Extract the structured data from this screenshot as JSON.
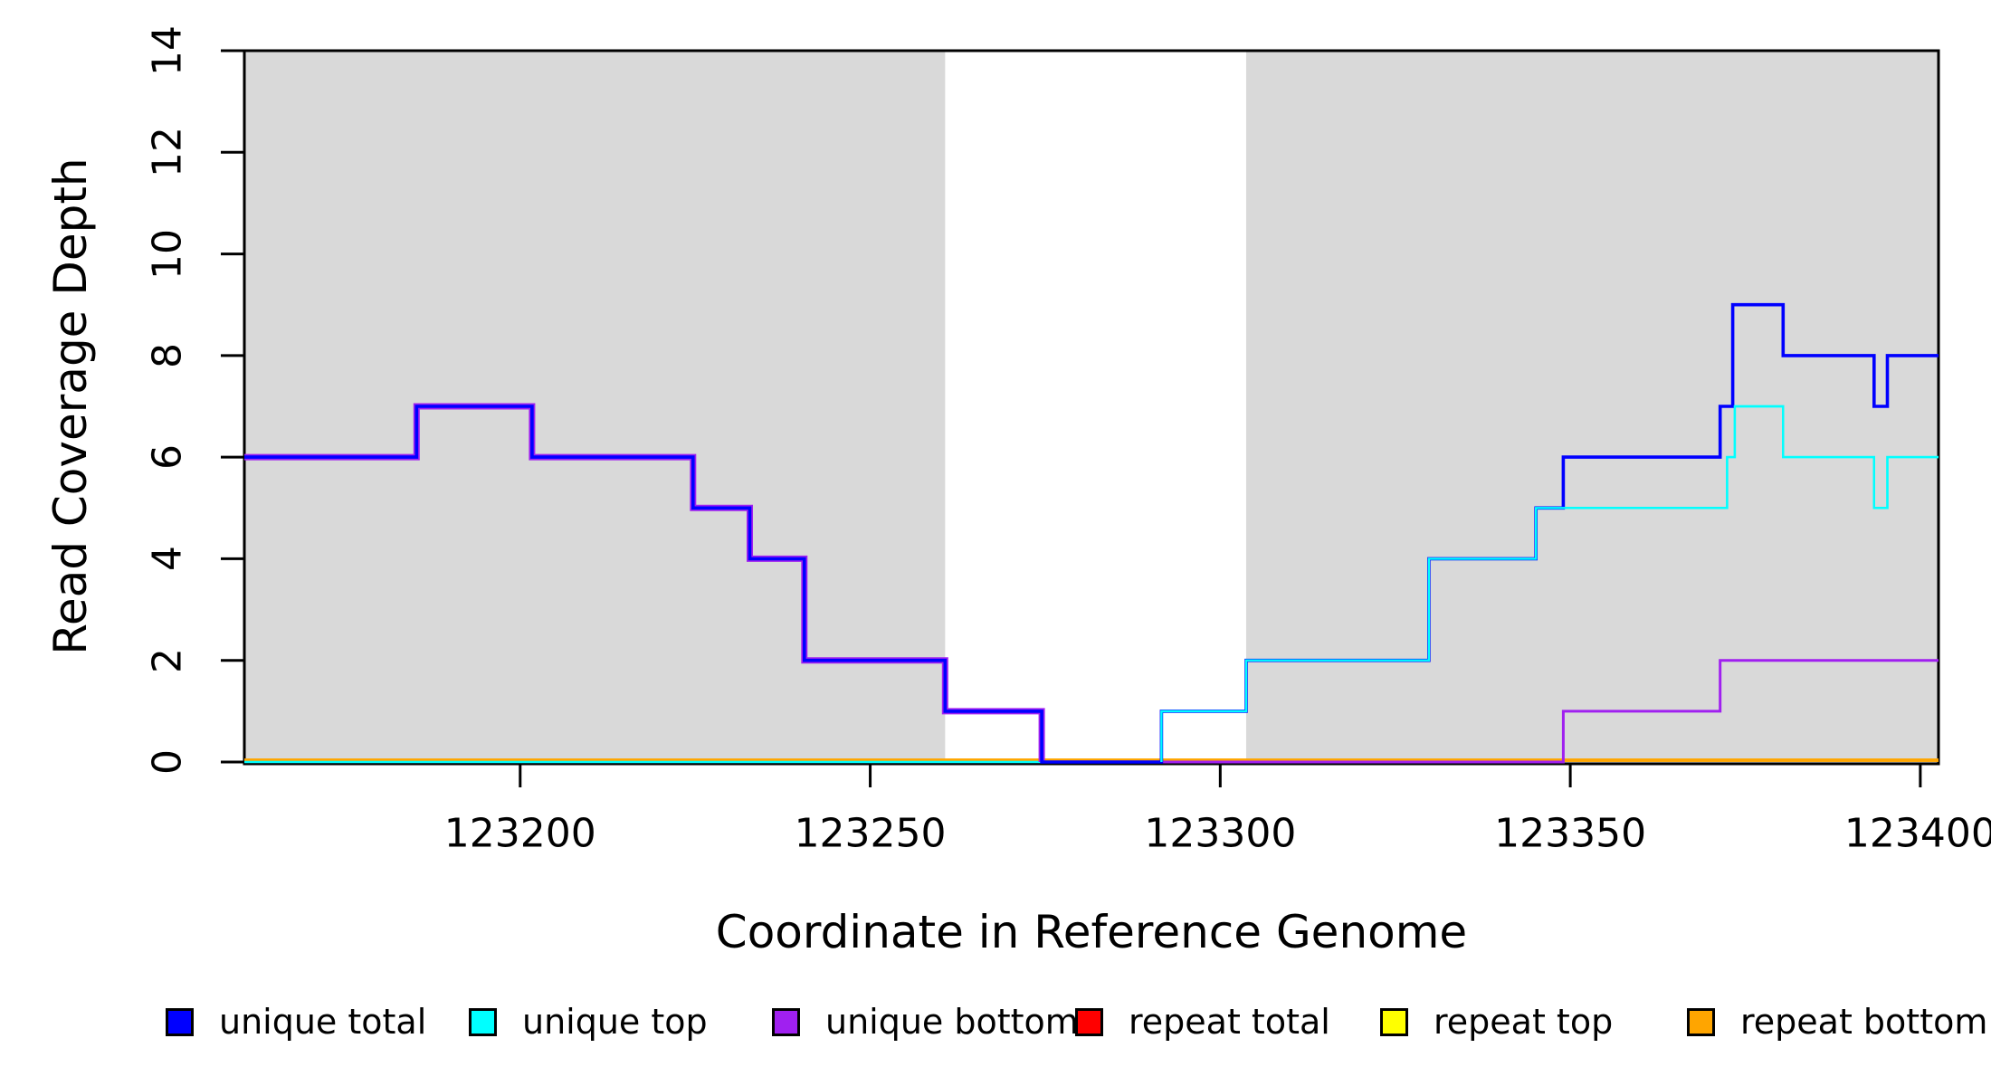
{
  "figure": {
    "background": "#ffffff",
    "plot_background_shading": "#d9d9d9"
  },
  "axes": {
    "x": {
      "title": "Coordinate in Reference Genome",
      "ticks": [
        123200,
        123250,
        123300,
        123350,
        123400
      ],
      "tick_labels": [
        "123200",
        "123250",
        "123300",
        "123350",
        "123400"
      ]
    },
    "y": {
      "title": "Read Coverage Depth",
      "ticks": [
        0,
        2,
        4,
        6,
        8,
        10,
        12,
        14
      ],
      "tick_labels": [
        "0",
        "2",
        "4",
        "6",
        "8",
        "10",
        "12",
        "14"
      ]
    }
  },
  "legend": {
    "items": [
      {
        "label": "unique total",
        "color": "#0000ff"
      },
      {
        "label": "unique top",
        "color": "#00ffff"
      },
      {
        "label": "unique bottom",
        "color": "#a020f0"
      },
      {
        "label": "repeat total",
        "color": "#ff0000"
      },
      {
        "label": "repeat top",
        "color": "#ffff00"
      },
      {
        "label": "repeat bottom",
        "color": "#ffa500"
      }
    ]
  },
  "chart_data": {
    "type": "line",
    "subtype": "step",
    "title": "",
    "xlabel": "Coordinate in Reference Genome",
    "ylabel": "Read Coverage Depth",
    "xlim": [
      123160.6,
      123402.6
    ],
    "ylim": [
      0,
      14
    ],
    "x_ticks": [
      123200,
      123250,
      123300,
      123350,
      123400
    ],
    "y_ticks": [
      0,
      2,
      4,
      6,
      8,
      10,
      12,
      14
    ],
    "grid": false,
    "legend_position": "bottom",
    "x_end": 123402.6,
    "shaded_regions": [
      {
        "x0": 123160.6,
        "x1": 123260.7,
        "color": "#d9d9d9"
      },
      {
        "x0": 123303.7,
        "x1": 123402.6,
        "color": "#d9d9d9"
      }
    ],
    "render_hints": {
      "coincident_bottom_total_until": 123274.5,
      "coincident_top_total_from": 123291.6
    },
    "series": [
      {
        "name": "repeat total",
        "color": "#ff0000",
        "steps": [
          [
            123160.6,
            0
          ]
        ]
      },
      {
        "name": "repeat top",
        "color": "#ffff00",
        "steps": [
          [
            123160.6,
            0
          ]
        ]
      },
      {
        "name": "repeat bottom",
        "color": "#ffa500",
        "steps": [
          [
            123160.6,
            0
          ]
        ]
      },
      {
        "name": "unique top",
        "color": "#00ffff",
        "steps": [
          [
            123160.6,
            0
          ],
          [
            123291.6,
            1
          ],
          [
            123303.7,
            2
          ],
          [
            123329.8,
            4
          ],
          [
            123345.1,
            5
          ],
          [
            123372.4,
            6
          ],
          [
            123373.5,
            7
          ],
          [
            123380.4,
            6
          ],
          [
            123393.4,
            5
          ],
          [
            123395.3,
            6
          ]
        ]
      },
      {
        "name": "unique bottom",
        "color": "#a020f0",
        "steps": [
          [
            123160.6,
            6
          ],
          [
            123185.2,
            7
          ],
          [
            123201.7,
            6
          ],
          [
            123224.7,
            5
          ],
          [
            123232.8,
            4
          ],
          [
            123240.6,
            2
          ],
          [
            123260.7,
            1
          ],
          [
            123274.5,
            0
          ],
          [
            123349.0,
            1
          ],
          [
            123371.4,
            2
          ]
        ]
      },
      {
        "name": "unique total",
        "color": "#0000ff",
        "steps": [
          [
            123160.6,
            6
          ],
          [
            123185.2,
            7
          ],
          [
            123201.7,
            6
          ],
          [
            123224.7,
            5
          ],
          [
            123232.8,
            4
          ],
          [
            123240.6,
            2
          ],
          [
            123260.7,
            1
          ],
          [
            123274.5,
            0
          ],
          [
            123291.6,
            1
          ],
          [
            123303.7,
            2
          ],
          [
            123329.8,
            4
          ],
          [
            123345.1,
            5
          ],
          [
            123349.0,
            6
          ],
          [
            123371.4,
            7
          ],
          [
            123373.2,
            9
          ],
          [
            123380.4,
            8
          ],
          [
            123393.4,
            7
          ],
          [
            123395.3,
            8
          ]
        ]
      }
    ]
  }
}
